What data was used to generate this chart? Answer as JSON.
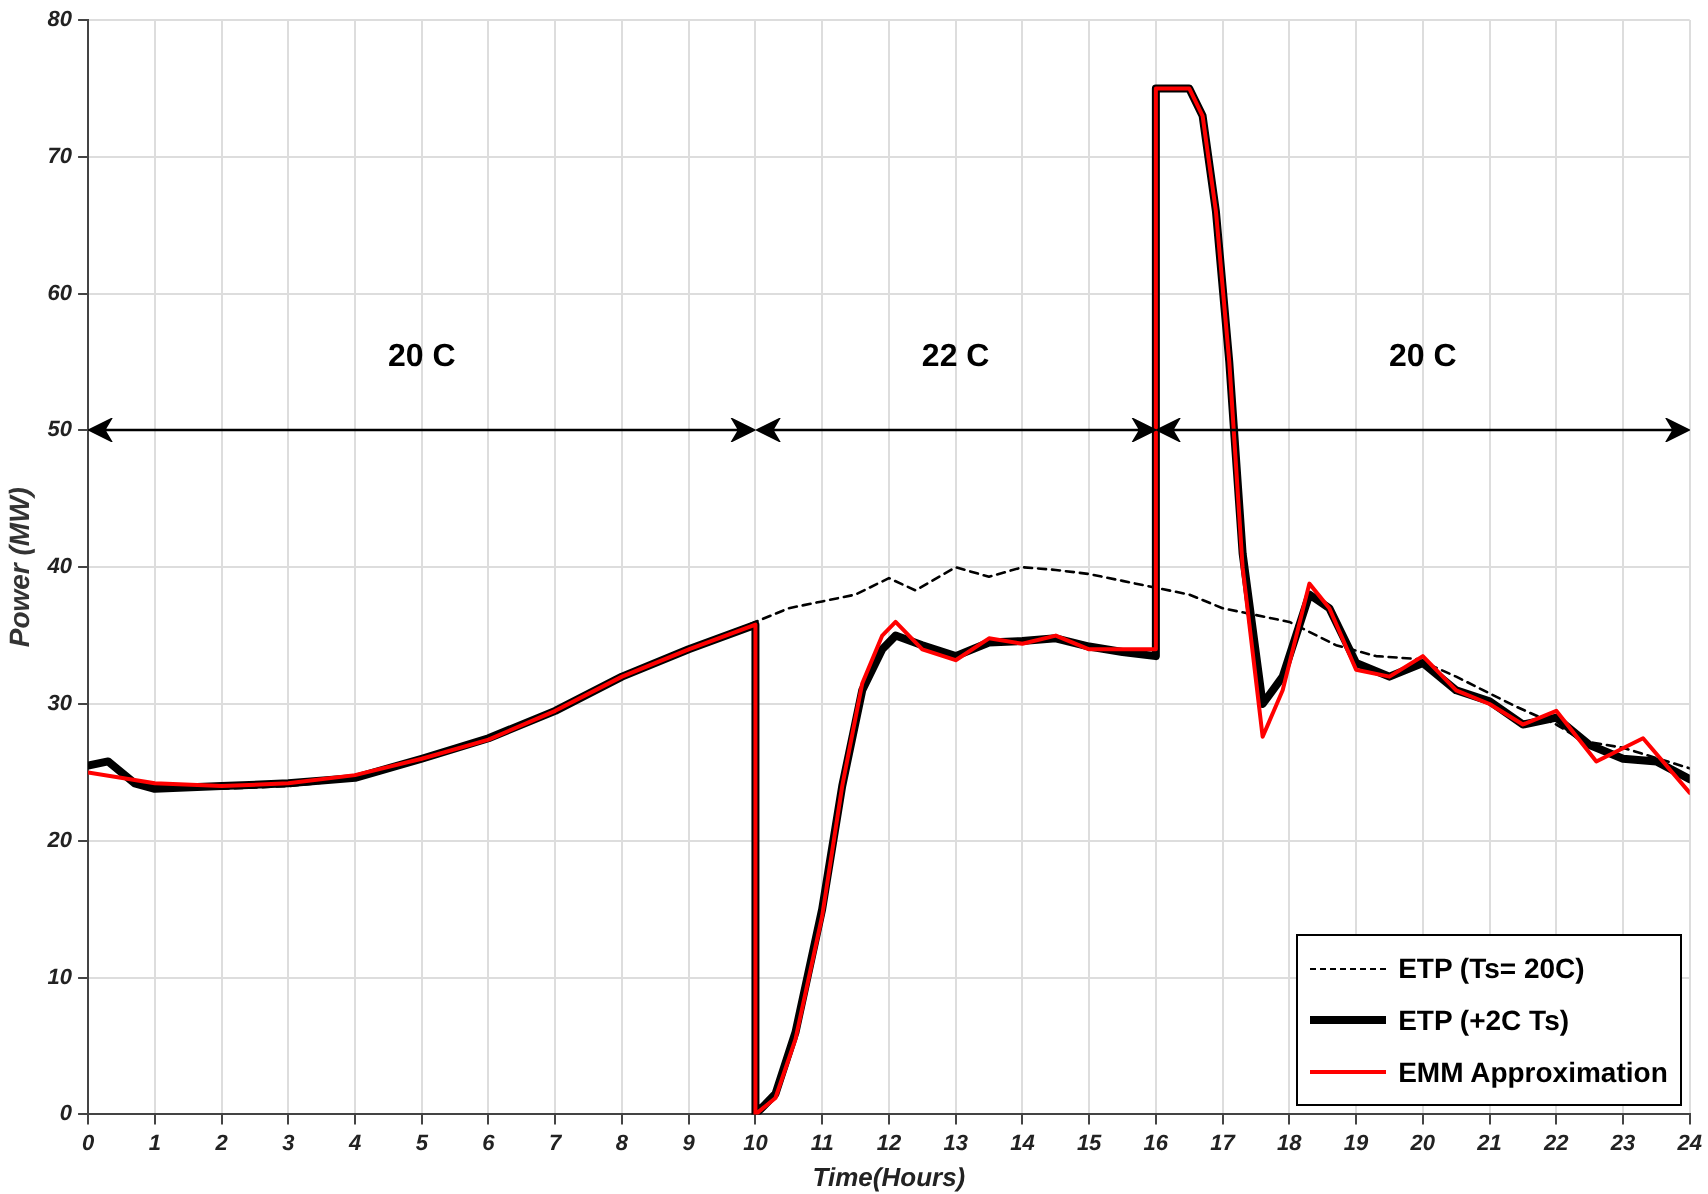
{
  "chart_data": {
    "type": "line",
    "xlabel": "Time(Hours)",
    "ylabel": "Power (MW)",
    "xlim": [
      0,
      24
    ],
    "xticks": [
      0,
      1,
      2,
      3,
      4,
      5,
      6,
      7,
      8,
      9,
      10,
      11,
      12,
      13,
      14,
      15,
      16,
      17,
      18,
      19,
      20,
      21,
      22,
      23,
      24
    ],
    "ylim": [
      0,
      80
    ],
    "yticks": [
      0,
      10,
      20,
      30,
      40,
      50,
      60,
      70,
      80
    ],
    "grid": true,
    "legend": "bottom right",
    "marker": "none",
    "annotations": [
      "20 C",
      "22 C",
      "20 C"
    ],
    "series": [
      {
        "name": "ETP (Ts= 20C)",
        "color": "#000000",
        "line_style": "dashed",
        "x": [
          0,
          0.3,
          0.7,
          1,
          2,
          3,
          4,
          5,
          6,
          7,
          8,
          9,
          10,
          10.5,
          11,
          11.5,
          12,
          12.4,
          13,
          13.5,
          14,
          14.5,
          15,
          15.5,
          16,
          16.5,
          17,
          17.5,
          18,
          18.7,
          19.3,
          19.9,
          20.5,
          21.4,
          22,
          22.4,
          23,
          23.4,
          24
        ],
        "values": [
          25.5,
          25.7,
          24.2,
          24,
          23.8,
          24,
          24.5,
          26,
          27.5,
          29.5,
          32,
          34,
          36,
          37,
          37.5,
          38,
          39.2,
          38.3,
          40,
          39.3,
          40,
          39.8,
          39.5,
          39,
          38.5,
          38,
          37,
          36.5,
          36,
          34.3,
          33.5,
          33.3,
          32,
          29.8,
          28.5,
          27.3,
          26.8,
          26.2,
          25.3
        ]
      },
      {
        "name": "ETP (+2C Ts)",
        "color": "#000000",
        "line_style": "solid",
        "x": [
          0,
          0.3,
          0.7,
          1,
          2,
          3,
          4,
          5,
          6,
          7,
          8,
          9,
          10,
          10,
          10.3,
          10.6,
          11,
          11.3,
          11.6,
          11.9,
          12.1,
          12.5,
          13,
          13.5,
          14,
          14.5,
          15,
          15.5,
          16,
          16,
          16.5,
          16.7,
          16.9,
          17.1,
          17.3,
          17.6,
          17.9,
          18.3,
          18.6,
          19,
          19.5,
          20,
          20.5,
          21,
          21.5,
          22,
          22.5,
          23,
          23.5,
          24
        ],
        "values": [
          25.5,
          25.8,
          24.2,
          23.8,
          24,
          24.2,
          24.6,
          26,
          27.5,
          29.5,
          32,
          34,
          35.8,
          0,
          1.5,
          6,
          15,
          24,
          31,
          34,
          35,
          34.3,
          33.5,
          34.5,
          34.6,
          34.8,
          34.2,
          33.8,
          33.5,
          75,
          75,
          73,
          66,
          55,
          41,
          30,
          32,
          38,
          37,
          33,
          32,
          33,
          31,
          30.2,
          28.5,
          29,
          27,
          26,
          25.8,
          24.5
        ]
      },
      {
        "name": "EMM Approximation",
        "color": "#ff0000",
        "line_style": "solid",
        "x": [
          0,
          1,
          2,
          3,
          4,
          5,
          6,
          7,
          8,
          9,
          10,
          10,
          10.3,
          10.6,
          11,
          11.3,
          11.6,
          11.9,
          12.1,
          12.5,
          13,
          13.5,
          14,
          14.5,
          15,
          15.5,
          16,
          16,
          16.5,
          16.7,
          16.9,
          17.1,
          17.3,
          17.6,
          17.9,
          18.3,
          18.6,
          19,
          19.5,
          20,
          20.5,
          21,
          21.5,
          22,
          22.6,
          23.3,
          24
        ],
        "values": [
          25,
          24.2,
          24,
          24.2,
          24.8,
          26,
          27.4,
          29.5,
          32,
          34,
          35.8,
          0,
          1.2,
          5.5,
          14.5,
          24,
          31.5,
          35,
          36,
          34,
          33.2,
          34.8,
          34.4,
          35,
          34,
          34,
          34,
          75,
          75,
          73,
          66,
          55,
          40,
          27.6,
          31,
          38.8,
          37,
          32.5,
          32,
          33.5,
          31,
          30,
          28.5,
          29.5,
          25.8,
          27.5,
          23.5
        ]
      }
    ]
  }
}
